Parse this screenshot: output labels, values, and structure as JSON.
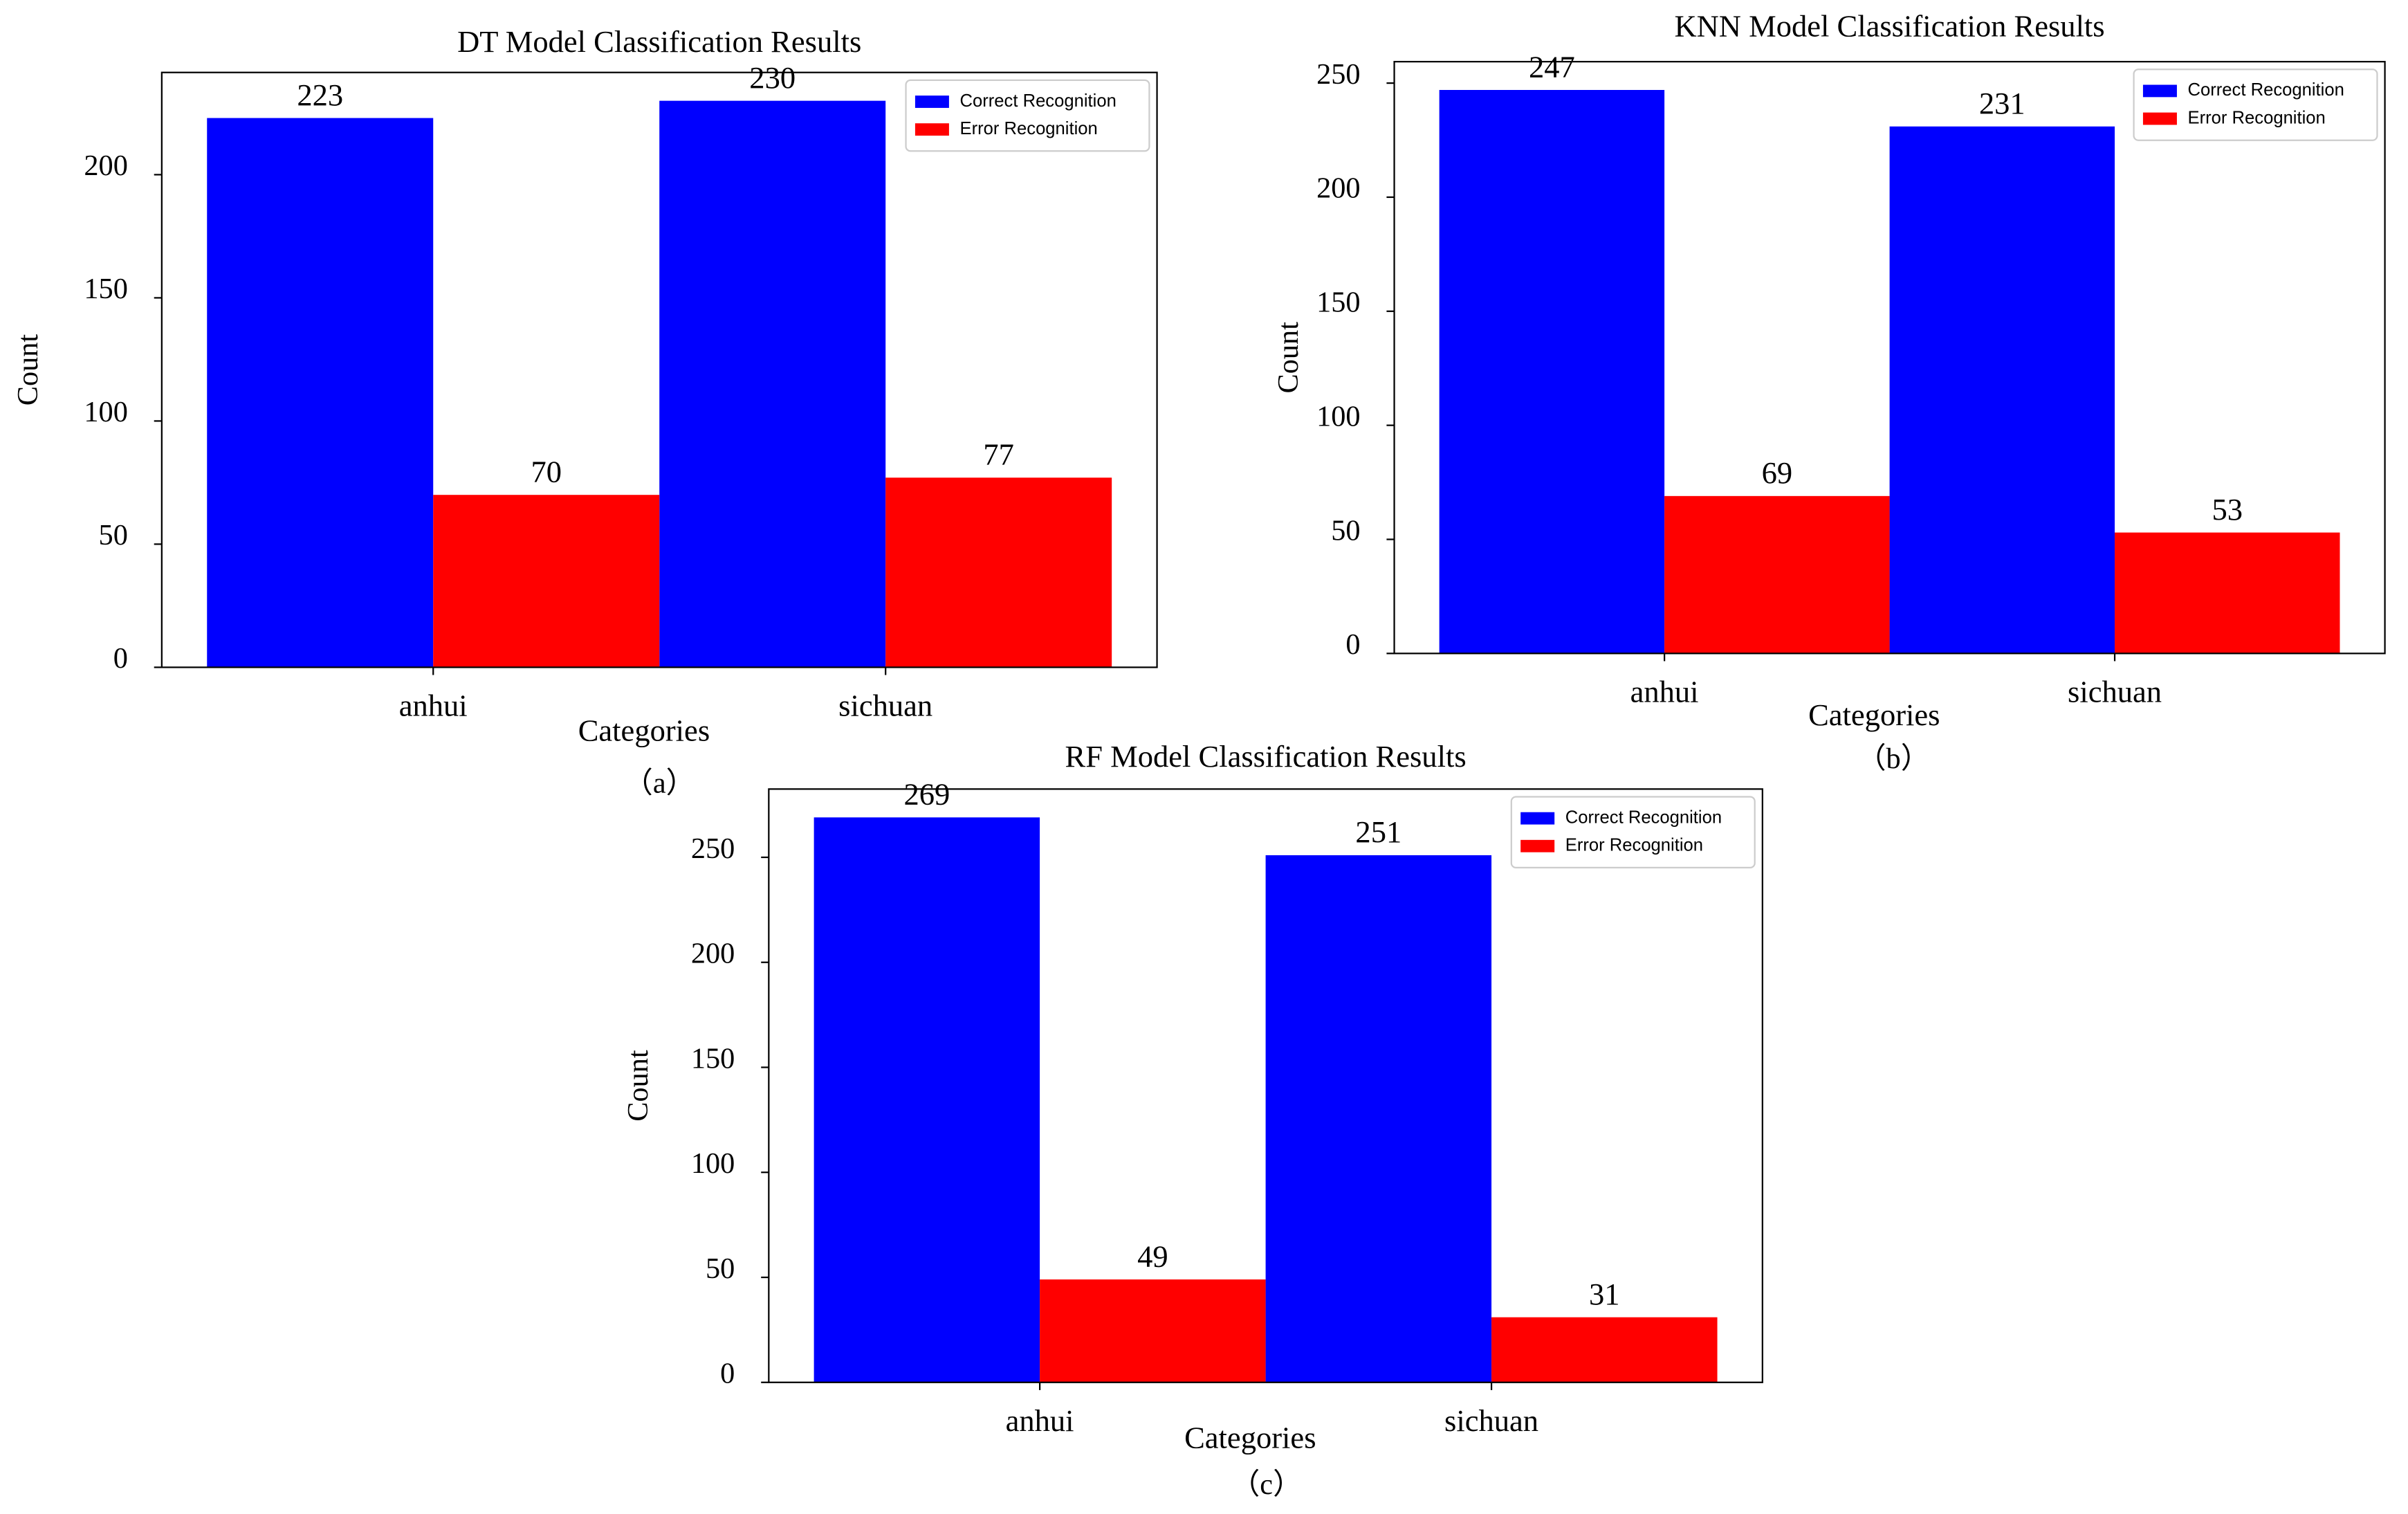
{
  "chart_data": [
    {
      "type": "bar",
      "title": "DT Model Classification Results",
      "caption": "（a）",
      "x_label": "Categories",
      "y_label": "Count",
      "categories": [
        "anhui",
        "sichuan"
      ],
      "series": [
        {
          "name": "Correct Recognition",
          "color": "#0000ff",
          "values": [
            223,
            230
          ]
        },
        {
          "name": "Error Recognition",
          "color": "#ff0000",
          "values": [
            70,
            77
          ]
        }
      ],
      "ylim": [
        0,
        241.5
      ],
      "yticks": [
        0,
        50,
        100,
        150,
        200
      ],
      "legend": "upper right"
    },
    {
      "type": "bar",
      "title": "KNN Model Classification Results",
      "caption": "（b）",
      "x_label": "Categories",
      "y_label": "Count",
      "categories": [
        "anhui",
        "sichuan"
      ],
      "series": [
        {
          "name": "Correct Recognition",
          "color": "#0000ff",
          "values": [
            247,
            231
          ]
        },
        {
          "name": "Error Recognition",
          "color": "#ff0000",
          "values": [
            69,
            53
          ]
        }
      ],
      "ylim": [
        0,
        259.4
      ],
      "yticks": [
        0,
        50,
        100,
        150,
        200,
        250
      ],
      "legend": "upper right"
    },
    {
      "type": "bar",
      "title": "RF Model Classification Results",
      "caption": "（c）",
      "x_label": "Categories",
      "y_label": "Count",
      "categories": [
        "anhui",
        "sichuan"
      ],
      "series": [
        {
          "name": "Correct Recognition",
          "color": "#0000ff",
          "values": [
            269,
            251
          ]
        },
        {
          "name": "Error Recognition",
          "color": "#ff0000",
          "values": [
            49,
            31
          ]
        }
      ],
      "ylim": [
        0,
        282.5
      ],
      "yticks": [
        0,
        50,
        100,
        150,
        200,
        250
      ],
      "legend": "upper right"
    }
  ]
}
